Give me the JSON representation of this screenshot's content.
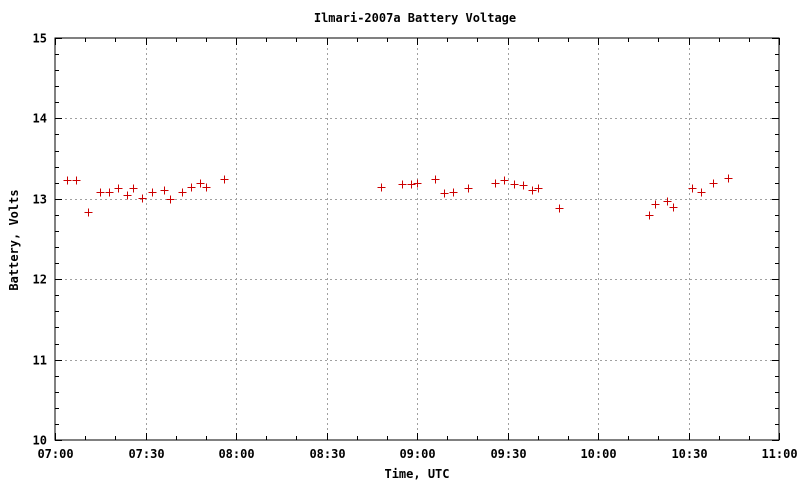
{
  "chart_data": {
    "type": "scatter",
    "title": "Ilmari-2007a  Battery Voltage",
    "xlabel": "Time, UTC",
    "ylabel": "Battery, Volts",
    "x_unit": "HH:MM",
    "xlim": [
      "07:00",
      "11:00"
    ],
    "ylim": [
      10,
      15
    ],
    "xticks": [
      "07:00",
      "07:30",
      "08:00",
      "08:30",
      "09:00",
      "09:30",
      "10:00",
      "10:30",
      "11:00"
    ],
    "yticks": [
      "10",
      "11",
      "12",
      "13",
      "14",
      "15"
    ],
    "grid": true,
    "marker": "+",
    "colors": {
      "marker": "#cc0000",
      "grid": "#a0a0a0",
      "axes": "#000000"
    },
    "series": [
      {
        "points": [
          {
            "x": "07:04",
            "y": 13.24
          },
          {
            "x": "07:07",
            "y": 13.24
          },
          {
            "x": "07:11",
            "y": 12.83
          },
          {
            "x": "07:15",
            "y": 13.08
          },
          {
            "x": "07:18",
            "y": 13.09
          },
          {
            "x": "07:21",
            "y": 13.14
          },
          {
            "x": "07:24",
            "y": 13.05
          },
          {
            "x": "07:26",
            "y": 13.13
          },
          {
            "x": "07:29",
            "y": 13.01
          },
          {
            "x": "07:32",
            "y": 13.08
          },
          {
            "x": "07:36",
            "y": 13.11
          },
          {
            "x": "07:38",
            "y": 13.0
          },
          {
            "x": "07:42",
            "y": 13.08
          },
          {
            "x": "07:45",
            "y": 13.15
          },
          {
            "x": "07:48",
            "y": 13.2
          },
          {
            "x": "07:50",
            "y": 13.15
          },
          {
            "x": "07:56",
            "y": 13.25
          },
          {
            "x": "08:48",
            "y": 13.15
          },
          {
            "x": "08:55",
            "y": 13.19
          },
          {
            "x": "08:58",
            "y": 13.19
          },
          {
            "x": "09:00",
            "y": 13.2
          },
          {
            "x": "09:06",
            "y": 13.25
          },
          {
            "x": "09:09",
            "y": 13.07
          },
          {
            "x": "09:12",
            "y": 13.08
          },
          {
            "x": "09:17",
            "y": 13.13
          },
          {
            "x": "09:26",
            "y": 13.2
          },
          {
            "x": "09:29",
            "y": 13.23
          },
          {
            "x": "09:32",
            "y": 13.19
          },
          {
            "x": "09:35",
            "y": 13.17
          },
          {
            "x": "09:38",
            "y": 13.11
          },
          {
            "x": "09:40",
            "y": 13.14
          },
          {
            "x": "09:47",
            "y": 12.89
          },
          {
            "x": "10:17",
            "y": 12.8
          },
          {
            "x": "10:19",
            "y": 12.94
          },
          {
            "x": "10:23",
            "y": 12.97
          },
          {
            "x": "10:25",
            "y": 12.9
          },
          {
            "x": "10:31",
            "y": 13.13
          },
          {
            "x": "10:34",
            "y": 13.09
          },
          {
            "x": "10:38",
            "y": 13.2
          },
          {
            "x": "10:43",
            "y": 13.26
          }
        ]
      }
    ]
  }
}
